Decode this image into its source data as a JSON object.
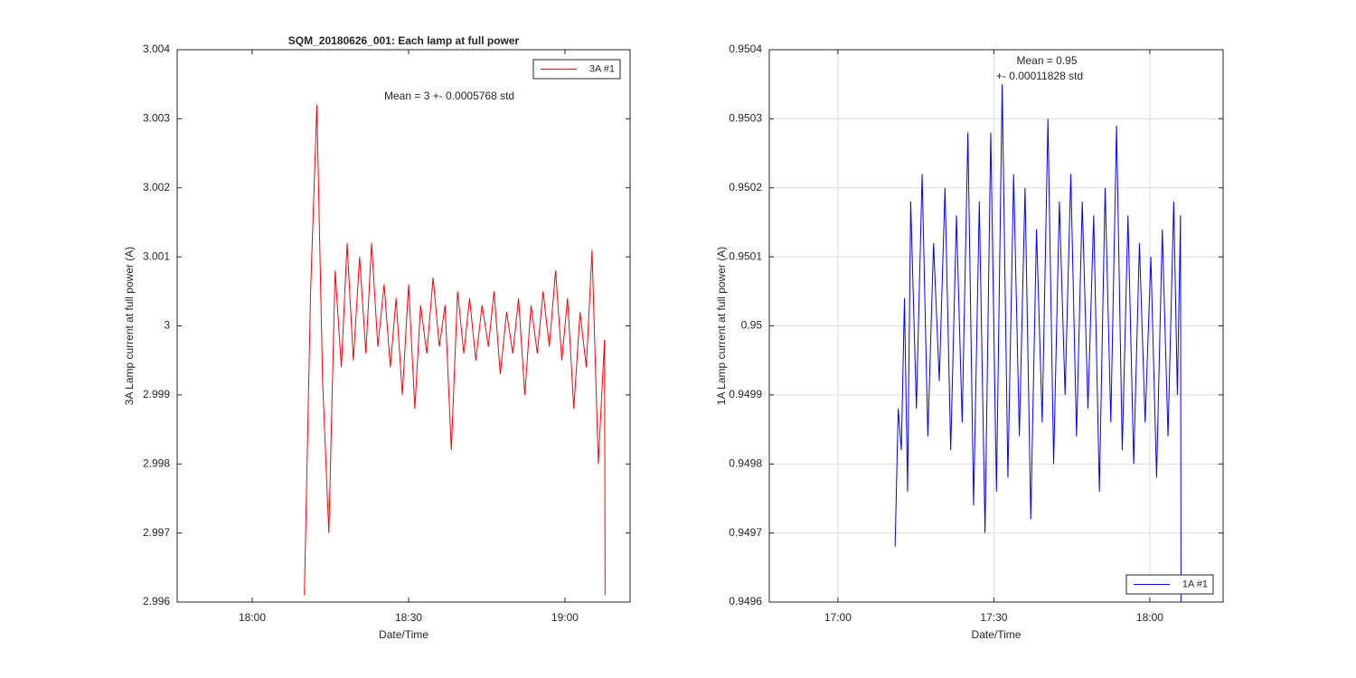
{
  "chart_data": [
    {
      "type": "line",
      "title": "SQM_20180626_001: Each lamp at full power",
      "xlabel": "Date/Time",
      "ylabel": "3A Lamp current at full power (A)",
      "annotations": [
        "Mean = 3 +- 0.0005768 std"
      ],
      "xlim": [
        1065.6,
        1152.5
      ],
      "xticks": [
        {
          "value": 1080,
          "label": "18:00"
        },
        {
          "value": 1110,
          "label": "18:30"
        },
        {
          "value": 1140,
          "label": "19:00"
        }
      ],
      "ylim": [
        2.996,
        3.004
      ],
      "yticks": [
        2.996,
        2.997,
        2.998,
        2.999,
        3,
        3.001,
        3.002,
        3.003,
        3.004
      ],
      "grid": false,
      "legend": "northeast",
      "x": [
        1090.0,
        1091.2,
        1092.4,
        1093.5,
        1094.7,
        1095.9,
        1097.1,
        1098.2,
        1099.4,
        1100.6,
        1101.8,
        1102.9,
        1104.1,
        1105.3,
        1106.5,
        1107.6,
        1108.8,
        1110.0,
        1111.2,
        1112.3,
        1113.5,
        1114.7,
        1115.9,
        1117.0,
        1118.2,
        1119.4,
        1120.6,
        1121.7,
        1122.9,
        1124.1,
        1125.3,
        1126.4,
        1127.6,
        1128.8,
        1130.0,
        1131.1,
        1132.3,
        1133.5,
        1134.7,
        1135.8,
        1137.0,
        1138.2,
        1139.4,
        1140.5,
        1141.7,
        1142.9,
        1144.1,
        1145.2,
        1146.4,
        1147.6,
        1147.7
      ],
      "series": [
        {
          "name": "3A #1",
          "color": "#ff0000",
          "values": [
            2.9961,
            3.0005,
            3.0032,
            2.9992,
            2.997,
            3.0008,
            2.9994,
            3.0012,
            2.9995,
            3.001,
            2.9996,
            3.0012,
            2.9997,
            3.0006,
            2.9994,
            3.0004,
            2.999,
            3.0006,
            2.9988,
            3.0003,
            2.9996,
            3.0007,
            2.9997,
            3.0003,
            2.9982,
            3.0005,
            2.9996,
            3.0004,
            2.9995,
            3.0003,
            2.9997,
            3.0005,
            2.9993,
            3.0002,
            2.9996,
            3.0004,
            2.999,
            3.0003,
            2.9996,
            3.0005,
            2.9997,
            3.0008,
            2.9995,
            3.0004,
            2.9988,
            3.0002,
            2.9994,
            3.0011,
            2.998,
            2.9998,
            2.9961
          ]
        }
      ]
    },
    {
      "type": "line",
      "xlabel": "Date/Time",
      "ylabel": "1A Lamp current at full power (A)",
      "annotations": [
        "Mean = 0.95",
        "+- 0.00011828 std"
      ],
      "xlim": [
        1006.8,
        1094.1
      ],
      "xticks": [
        {
          "value": 1020,
          "label": "17:00"
        },
        {
          "value": 1050,
          "label": "17:30"
        },
        {
          "value": 1080,
          "label": "18:00"
        }
      ],
      "ylim": [
        0.9496,
        0.9504
      ],
      "yticks": [
        0.9496,
        0.9497,
        0.9498,
        0.9499,
        0.95,
        0.9501,
        0.9502,
        0.9503,
        0.9504
      ],
      "grid": true,
      "legend": "southeast",
      "x": [
        1031.0,
        1031.6,
        1032.2,
        1032.8,
        1033.4,
        1034.0,
        1035.1,
        1036.2,
        1037.3,
        1038.4,
        1039.5,
        1040.6,
        1041.7,
        1042.8,
        1043.9,
        1045.0,
        1046.1,
        1047.2,
        1048.3,
        1049.4,
        1050.5,
        1051.6,
        1052.7,
        1053.8,
        1054.9,
        1056.0,
        1057.1,
        1058.2,
        1059.3,
        1060.4,
        1061.5,
        1062.6,
        1063.7,
        1064.8,
        1065.9,
        1067.0,
        1068.1,
        1069.2,
        1070.3,
        1071.4,
        1072.5,
        1073.6,
        1074.7,
        1075.8,
        1076.9,
        1078.0,
        1079.1,
        1080.2,
        1081.3,
        1082.4,
        1083.5,
        1084.6,
        1085.3,
        1085.9,
        1086.0
      ],
      "series": [
        {
          "name": "1A #1",
          "color": "#0000ff",
          "values": [
            0.94968,
            0.94988,
            0.94982,
            0.95004,
            0.94976,
            0.95018,
            0.94988,
            0.95022,
            0.94984,
            0.95012,
            0.94992,
            0.9502,
            0.94982,
            0.95016,
            0.94986,
            0.95028,
            0.94974,
            0.95018,
            0.9497,
            0.95028,
            0.94976,
            0.95035,
            0.94978,
            0.95022,
            0.94984,
            0.9502,
            0.94972,
            0.95014,
            0.94986,
            0.9503,
            0.9498,
            0.95018,
            0.9499,
            0.95022,
            0.94984,
            0.95018,
            0.94988,
            0.95016,
            0.94976,
            0.9502,
            0.94986,
            0.95029,
            0.94982,
            0.95016,
            0.9498,
            0.95012,
            0.94986,
            0.9501,
            0.94978,
            0.95014,
            0.94984,
            0.95018,
            0.9499,
            0.95016,
            0.9496
          ]
        }
      ]
    }
  ]
}
